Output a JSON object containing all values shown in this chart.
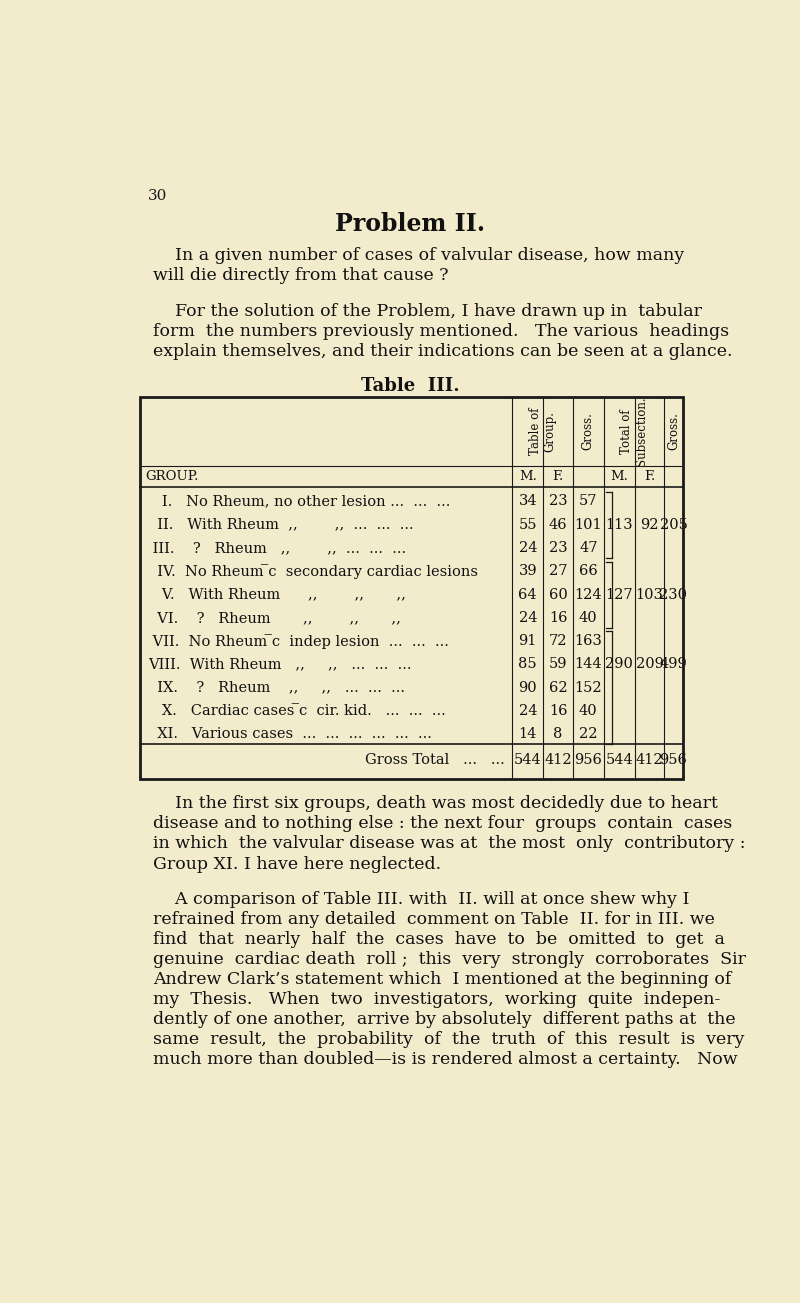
{
  "bg_color": "#f2eccc",
  "page_number": "30",
  "title": "Problem II.",
  "para1_indent": "    In a given number of cases of valvular disease, how many",
  "para1_line2": "will die directly from that cause ?",
  "para2_indent": "    For the solution of the Problem, I have drawn up in  tabular",
  "para2_line2": "form  the numbers previously mentioned.   The various  headings",
  "para2_line3": "explain themselves, and their indications can be seen at a glance.",
  "table_title": "Table  III.",
  "rows": [
    {
      "label": "   I.   No Rheum, no other lesion ...  ...  ...",
      "m": "34",
      "f": "23",
      "gross": "57"
    },
    {
      "label": "  II.   With Rheum  ,,        ,,  ...  ...  ...",
      "m": "55",
      "f": "46",
      "gross": "101"
    },
    {
      "label": " III.    ?   Rheum   ,,        ,,  ...  ...  ...",
      "m": "24",
      "f": "23",
      "gross": "47"
    },
    {
      "label": "  IV.  No Rheum ̅c  secondary cardiac lesions",
      "m": "39",
      "f": "27",
      "gross": "66"
    },
    {
      "label": "   V.   With Rheum      ,,        ,,       ,,",
      "m": "64",
      "f": "60",
      "gross": "124"
    },
    {
      "label": "  VI.    ?   Rheum       ,,        ,,       ,,",
      "m": "24",
      "f": "16",
      "gross": "40"
    },
    {
      "label": " VII.  No Rheum ̅c  indep lesion  ...  ...  ...",
      "m": "91",
      "f": "72",
      "gross": "163"
    },
    {
      "label": "VIII.  With Rheum   ,,     ,,   ...  ...  ...",
      "m": "85",
      "f": "59",
      "gross": "144"
    },
    {
      "label": "  IX.    ?   Rheum    ,,     ,,   ...  ...  ...",
      "m": "90",
      "f": "62",
      "gross": "152"
    },
    {
      "label": "   X.   Cardiac cases ̅c  cir. kid.   ...  ...  ...",
      "m": "24",
      "f": "16",
      "gross": "40"
    },
    {
      "label": "  XI.   Various cases  ...  ...  ...  ...  ...  ...",
      "m": "14",
      "f": "8",
      "gross": "22"
    }
  ],
  "brace_groups": [
    {
      "r_start": 0,
      "r_end": 2,
      "r_mid": 1,
      "sm": "113",
      "sf": "92",
      "sg": "205"
    },
    {
      "r_start": 3,
      "r_end": 5,
      "r_mid": 4,
      "sm": "127",
      "sf": "103",
      "sg": "230"
    },
    {
      "r_start": 6,
      "r_end": 10,
      "r_mid": 7,
      "sm": "290",
      "sf": "209",
      "sg": "499"
    }
  ],
  "gross_total_m": "544",
  "gross_total_f": "412",
  "gross_total_gross": "956",
  "gross_total_sub_m": "544",
  "gross_total_sub_f": "412",
  "gross_total_sub_gross": "956",
  "para3_lines": [
    "    In the first six groups, death was most decidedly due to heart",
    "disease and to nothing else : the next four  groups  contain  cases",
    "in which  the valvular disease was at  the most  only  contributory :",
    "Group XI. I have here neglected."
  ],
  "para4_lines": [
    "    A comparison of Table III. with  II. will at once shew why I",
    "refrained from any detailed  comment on Table  II. for in III. we",
    "find  that  nearly  half  the  cases  have  to  be  omitted  to  get  a",
    "genuine  cardiac death  roll ;  this  very  strongly  corroborates  Sir",
    "Andrew Clark’s statement which  I mentioned at the beginning of",
    "my  Thesis.   When  two  investigators,  working  quite  indepen-",
    "dently of one another,  arrive by absolutely  different paths at  the",
    "same  result,  the  probability  of  the  truth  of  this  result  is  very",
    "much more than doubled—is is rendered almost a certainty.   Now"
  ]
}
